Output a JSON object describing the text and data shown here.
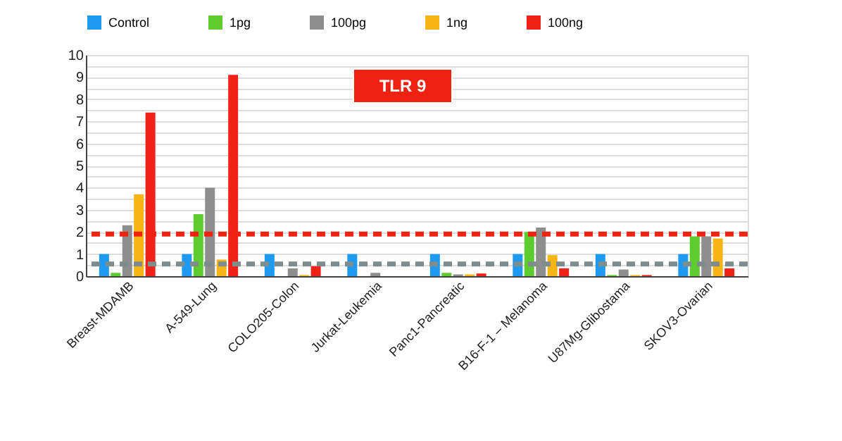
{
  "chart_data": {
    "type": "bar",
    "annotations": [
      "TLR 9"
    ],
    "categories": [
      "Breast-MDAMB",
      "A-549-Lung",
      "COLO205-Colon",
      "Jurkat-Leukemia",
      "Panc1-Pancreatic",
      "B16-F-1 – Melanoma",
      "U87Mg-Glibostama",
      "SKOV3-Ovarian"
    ],
    "series": [
      {
        "name": "Control",
        "color": "#1e9bf0",
        "values": [
          1.0,
          1.0,
          1.0,
          1.0,
          1.0,
          1.0,
          1.0,
          1.0
        ]
      },
      {
        "name": "1pg",
        "color": "#5ccc2e",
        "values": [
          0.15,
          2.8,
          null,
          null,
          0.15,
          2.0,
          0.05,
          1.8
        ]
      },
      {
        "name": "100pg",
        "color": "#8e8e8e",
        "values": [
          2.3,
          4.0,
          0.35,
          0.15,
          0.08,
          2.2,
          0.3,
          1.8
        ]
      },
      {
        "name": "1ng",
        "color": "#f7b515",
        "values": [
          3.7,
          0.75,
          0.05,
          null,
          0.08,
          0.95,
          0.05,
          1.7
        ]
      },
      {
        "name": "100ng",
        "color": "#f02116",
        "values": [
          7.4,
          9.1,
          0.45,
          null,
          0.12,
          0.35,
          0.05,
          0.35
        ]
      }
    ],
    "ylim": [
      0,
      10
    ],
    "yticks": [
      0,
      {
        "value": 0.5,
        "label": null
      },
      1,
      {
        "value": 1.5,
        "label": null
      },
      2,
      {
        "value": 2.5,
        "label": null
      },
      3,
      {
        "value": 3.5,
        "label": null
      },
      4,
      {
        "value": 4.5,
        "label": null
      },
      5,
      {
        "value": 5.5,
        "label": null
      },
      6,
      {
        "value": 6.5,
        "label": null
      },
      7,
      {
        "value": 7.5,
        "label": null
      },
      8,
      {
        "value": 8.5,
        "label": null
      },
      9,
      {
        "value": 9.5,
        "label": null
      },
      10
    ],
    "ref_lines": [
      {
        "axis": "y",
        "value": 1.9,
        "color": "#ee2211",
        "line_style": "dashed"
      },
      {
        "axis": "y",
        "value": 0.55,
        "color": "#7f8c8d",
        "line_style": "dashed"
      }
    ],
    "grid": "y",
    "legend": "top"
  }
}
